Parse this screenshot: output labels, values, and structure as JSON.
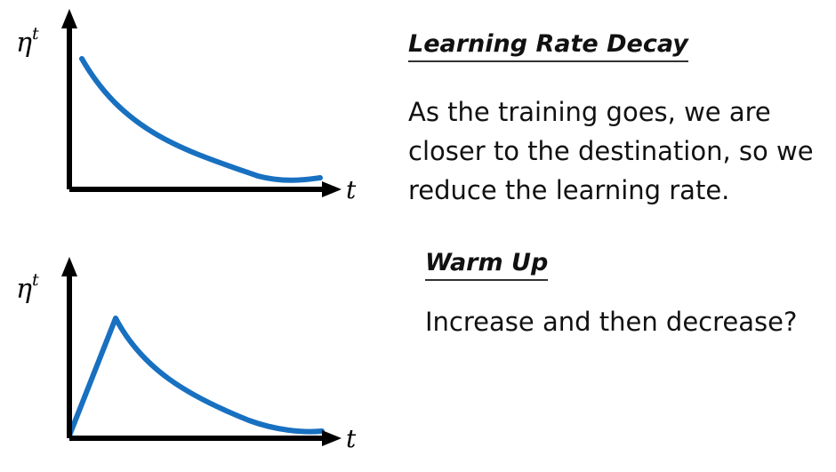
{
  "panels": [
    {
      "title": "Learning Rate Decay",
      "description_lines": [
        "As the training goes, we are",
        "closer to the destination, so we",
        "reduce the learning rate."
      ],
      "y_symbol": "η",
      "y_superscript": "t",
      "x_symbol": "t",
      "curve_shape": "decay"
    },
    {
      "title": "Warm Up",
      "description_lines": [
        "Increase and then decrease?"
      ],
      "y_symbol": "η",
      "y_superscript": "t",
      "x_symbol": "t",
      "curve_shape": "warmup-then-decay"
    }
  ],
  "colors": {
    "curve": "#1870c0",
    "axis": "#000000",
    "text": "#111111"
  },
  "icons": {
    "axis_arrow": "arrowhead"
  }
}
